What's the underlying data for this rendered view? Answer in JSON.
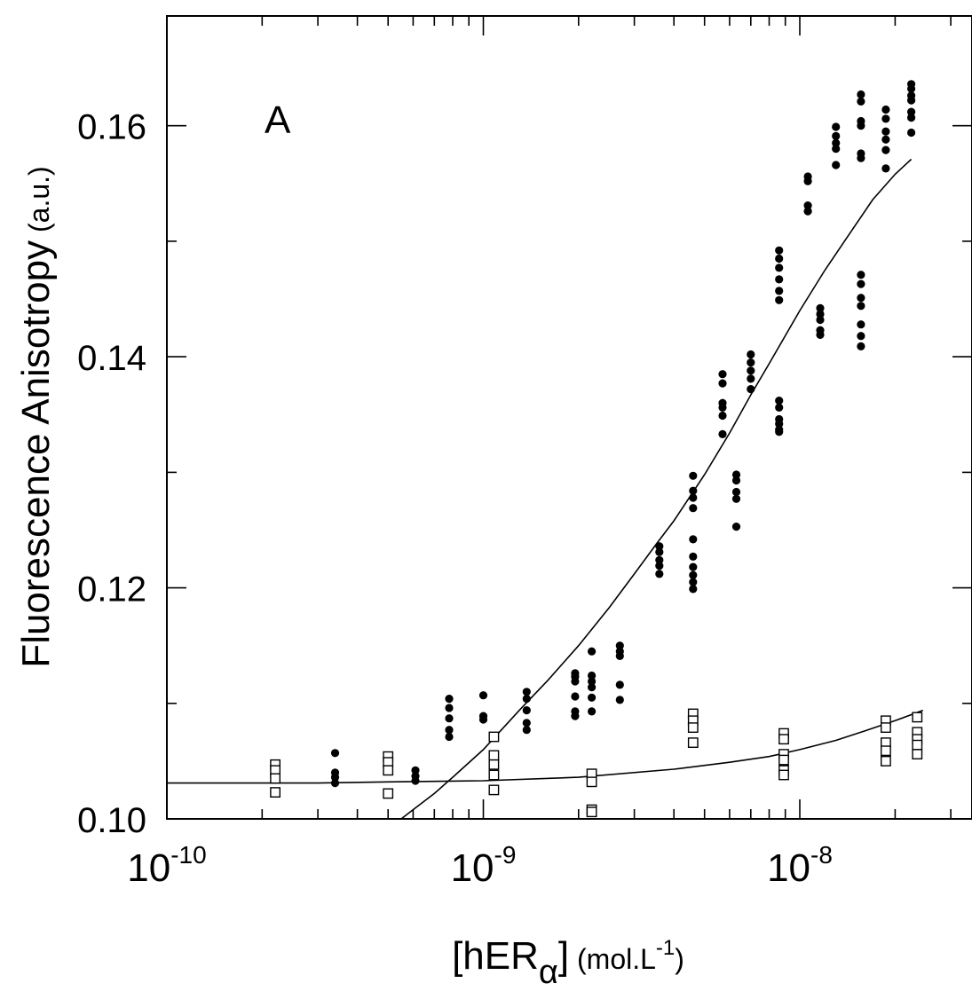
{
  "chart_data": {
    "type": "scatter",
    "panel_label": "A",
    "x_scale": "log",
    "xlim": [
      1e-10,
      3.5e-08
    ],
    "ylim": [
      0.1,
      0.1695
    ],
    "grid": false,
    "xlabel": {
      "main": "[hER",
      "subscript": "α",
      "close": "]",
      "units_prefix": " (mol.L",
      "units_exp": "-1",
      "units_suffix": ")"
    },
    "ylabel": {
      "main": "Fluorescence Anisotropy",
      "units": " (a.u.)"
    },
    "x_ticks": [
      {
        "base": "10",
        "exp": "-10",
        "value": 1e-10
      },
      {
        "base": "10",
        "exp": "-9",
        "value": 1e-09
      },
      {
        "base": "10",
        "exp": "-8",
        "value": 1e-08
      }
    ],
    "y_ticks": [
      {
        "label": "0.10",
        "value": 0.1
      },
      {
        "label": "0.12",
        "value": 0.12
      },
      {
        "label": "0.14",
        "value": 0.14
      },
      {
        "label": "0.16",
        "value": 0.16
      }
    ],
    "series": [
      {
        "marker": "filled-circle",
        "color": "#000000",
        "points": [
          [
            3.4e-10,
            0.1057
          ],
          [
            3.4e-10,
            0.104
          ],
          [
            3.4e-10,
            0.1036
          ],
          [
            3.4e-10,
            0.1031
          ],
          [
            6.1e-10,
            0.1042
          ],
          [
            6.1e-10,
            0.1037
          ],
          [
            6.1e-10,
            0.1033
          ],
          [
            7.8e-10,
            0.1104
          ],
          [
            7.8e-10,
            0.1096
          ],
          [
            7.8e-10,
            0.1087
          ],
          [
            7.8e-10,
            0.1077
          ],
          [
            7.8e-10,
            0.1071
          ],
          [
            1e-09,
            0.1107
          ],
          [
            1e-09,
            0.1089
          ],
          [
            1e-09,
            0.1086
          ],
          [
            1.37e-09,
            0.111
          ],
          [
            1.37e-09,
            0.1104
          ],
          [
            1.37e-09,
            0.1094
          ],
          [
            1.37e-09,
            0.1083
          ],
          [
            1.37e-09,
            0.1077
          ],
          [
            1.95e-09,
            0.1126
          ],
          [
            1.95e-09,
            0.1123
          ],
          [
            1.95e-09,
            0.1119
          ],
          [
            1.95e-09,
            0.1106
          ],
          [
            1.95e-09,
            0.1093
          ],
          [
            1.95e-09,
            0.1089
          ],
          [
            2.2e-09,
            0.1145
          ],
          [
            2.2e-09,
            0.1124
          ],
          [
            2.2e-09,
            0.1119
          ],
          [
            2.2e-09,
            0.1114
          ],
          [
            2.2e-09,
            0.1105
          ],
          [
            2.2e-09,
            0.1093
          ],
          [
            2.7e-09,
            0.115
          ],
          [
            2.7e-09,
            0.1145
          ],
          [
            2.7e-09,
            0.1141
          ],
          [
            2.7e-09,
            0.1116
          ],
          [
            2.7e-09,
            0.1103
          ],
          [
            3.6e-09,
            0.1236
          ],
          [
            3.6e-09,
            0.1231
          ],
          [
            3.6e-09,
            0.1224
          ],
          [
            3.6e-09,
            0.1219
          ],
          [
            3.6e-09,
            0.1212
          ],
          [
            4.6e-09,
            0.1297
          ],
          [
            4.6e-09,
            0.1284
          ],
          [
            4.6e-09,
            0.1278
          ],
          [
            4.6e-09,
            0.1269
          ],
          [
            4.6e-09,
            0.1242
          ],
          [
            4.6e-09,
            0.1227
          ],
          [
            4.6e-09,
            0.1218
          ],
          [
            4.6e-09,
            0.1211
          ],
          [
            4.6e-09,
            0.1205
          ],
          [
            4.6e-09,
            0.1199
          ],
          [
            5.7e-09,
            0.1385
          ],
          [
            5.7e-09,
            0.1377
          ],
          [
            5.7e-09,
            0.136
          ],
          [
            5.7e-09,
            0.1356
          ],
          [
            5.7e-09,
            0.1349
          ],
          [
            5.7e-09,
            0.1333
          ],
          [
            6.3e-09,
            0.1298
          ],
          [
            6.3e-09,
            0.1293
          ],
          [
            6.3e-09,
            0.1283
          ],
          [
            6.3e-09,
            0.1277
          ],
          [
            6.3e-09,
            0.1253
          ],
          [
            7e-09,
            0.1402
          ],
          [
            7e-09,
            0.1395
          ],
          [
            7e-09,
            0.1388
          ],
          [
            7e-09,
            0.1381
          ],
          [
            7e-09,
            0.1372
          ],
          [
            8.6e-09,
            0.1492
          ],
          [
            8.6e-09,
            0.1485
          ],
          [
            8.6e-09,
            0.1477
          ],
          [
            8.6e-09,
            0.1467
          ],
          [
            8.6e-09,
            0.1457
          ],
          [
            8.6e-09,
            0.1449
          ],
          [
            8.6e-09,
            0.1362
          ],
          [
            8.6e-09,
            0.1356
          ],
          [
            8.6e-09,
            0.1346
          ],
          [
            8.6e-09,
            0.1342
          ],
          [
            8.6e-09,
            0.1337
          ],
          [
            8.6e-09,
            0.1335
          ],
          [
            1.06e-08,
            0.1556
          ],
          [
            1.06e-08,
            0.1552
          ],
          [
            1.06e-08,
            0.1531
          ],
          [
            1.06e-08,
            0.1526
          ],
          [
            1.16e-08,
            0.1442
          ],
          [
            1.16e-08,
            0.1437
          ],
          [
            1.16e-08,
            0.1432
          ],
          [
            1.16e-08,
            0.1423
          ],
          [
            1.16e-08,
            0.1419
          ],
          [
            1.3e-08,
            0.1599
          ],
          [
            1.3e-08,
            0.1591
          ],
          [
            1.3e-08,
            0.1585
          ],
          [
            1.3e-08,
            0.158
          ],
          [
            1.3e-08,
            0.1566
          ],
          [
            1.56e-08,
            0.1627
          ],
          [
            1.56e-08,
            0.1621
          ],
          [
            1.56e-08,
            0.1604
          ],
          [
            1.56e-08,
            0.16
          ],
          [
            1.56e-08,
            0.1576
          ],
          [
            1.56e-08,
            0.1572
          ],
          [
            1.56e-08,
            0.1471
          ],
          [
            1.56e-08,
            0.1463
          ],
          [
            1.56e-08,
            0.1451
          ],
          [
            1.56e-08,
            0.1444
          ],
          [
            1.56e-08,
            0.1428
          ],
          [
            1.56e-08,
            0.1418
          ],
          [
            1.56e-08,
            0.1409
          ],
          [
            1.87e-08,
            0.1614
          ],
          [
            1.87e-08,
            0.1606
          ],
          [
            1.87e-08,
            0.1595
          ],
          [
            1.87e-08,
            0.1588
          ],
          [
            1.87e-08,
            0.1579
          ],
          [
            1.87e-08,
            0.1563
          ],
          [
            2.25e-08,
            0.1636
          ],
          [
            2.25e-08,
            0.1632
          ],
          [
            2.25e-08,
            0.1626
          ],
          [
            2.25e-08,
            0.1622
          ],
          [
            2.25e-08,
            0.1612
          ],
          [
            2.25e-08,
            0.1607
          ],
          [
            2.25e-08,
            0.1594
          ]
        ]
      },
      {
        "marker": "open-square",
        "color": "#000000",
        "points": [
          [
            2.2e-10,
            0.1047
          ],
          [
            2.2e-10,
            0.1042
          ],
          [
            2.2e-10,
            0.1035
          ],
          [
            2.2e-10,
            0.1023
          ],
          [
            5e-10,
            0.1054
          ],
          [
            5e-10,
            0.1049
          ],
          [
            5e-10,
            0.1042
          ],
          [
            5e-10,
            0.1022
          ],
          [
            1.08e-09,
            0.1071
          ],
          [
            1.08e-09,
            0.1055
          ],
          [
            1.08e-09,
            0.1047
          ],
          [
            1.08e-09,
            0.1038
          ],
          [
            1.08e-09,
            0.1025
          ],
          [
            2.2e-09,
            0.1039
          ],
          [
            2.2e-09,
            0.1032
          ],
          [
            2.2e-09,
            0.1008
          ],
          [
            2.2e-09,
            0.1006
          ],
          [
            4.6e-09,
            0.1091
          ],
          [
            4.6e-09,
            0.1085
          ],
          [
            4.6e-09,
            0.1079
          ],
          [
            4.6e-09,
            0.1066
          ],
          [
            8.9e-09,
            0.1074
          ],
          [
            8.9e-09,
            0.1069
          ],
          [
            8.9e-09,
            0.1056
          ],
          [
            8.9e-09,
            0.1051
          ],
          [
            8.9e-09,
            0.1042
          ],
          [
            8.9e-09,
            0.1038
          ],
          [
            1.87e-08,
            0.1085
          ],
          [
            1.87e-08,
            0.1079
          ],
          [
            1.87e-08,
            0.1066
          ],
          [
            1.87e-08,
            0.1059
          ],
          [
            1.87e-08,
            0.105
          ],
          [
            2.35e-08,
            0.1088
          ],
          [
            2.35e-08,
            0.1075
          ],
          [
            2.35e-08,
            0.1069
          ],
          [
            2.35e-08,
            0.1064
          ],
          [
            2.35e-08,
            0.1056
          ]
        ]
      }
    ],
    "fits": [
      {
        "stroke": "#000000",
        "points": [
          [
            5.5e-10,
            0.1
          ],
          [
            6e-10,
            0.1008
          ],
          [
            7e-10,
            0.1022
          ],
          [
            8e-10,
            0.1036
          ],
          [
            1e-09,
            0.106
          ],
          [
            1.3e-09,
            0.1094
          ],
          [
            1.6e-09,
            0.112
          ],
          [
            2e-09,
            0.115
          ],
          [
            2.5e-09,
            0.1183
          ],
          [
            3e-09,
            0.1212
          ],
          [
            3.5e-09,
            0.1237
          ],
          [
            4e-09,
            0.1258
          ],
          [
            5e-09,
            0.1298
          ],
          [
            6e-09,
            0.1334
          ],
          [
            7e-09,
            0.1367
          ],
          [
            8e-09,
            0.1394
          ],
          [
            1e-08,
            0.144
          ],
          [
            1.2e-08,
            0.1475
          ],
          [
            1.4e-08,
            0.1502
          ],
          [
            1.7e-08,
            0.1536
          ],
          [
            2e-08,
            0.1558
          ],
          [
            2.25e-08,
            0.1571
          ]
        ]
      },
      {
        "stroke": "#000000",
        "points": [
          [
            1e-10,
            0.1031
          ],
          [
            3e-10,
            0.1031
          ],
          [
            5e-10,
            0.1032
          ],
          [
            1e-09,
            0.1033
          ],
          [
            2e-09,
            0.1036
          ],
          [
            4e-09,
            0.1043
          ],
          [
            6e-09,
            0.1049
          ],
          [
            8e-09,
            0.1054
          ],
          [
            1e-08,
            0.106
          ],
          [
            1.3e-08,
            0.1068
          ],
          [
            1.6e-08,
            0.1076
          ],
          [
            2e-08,
            0.1085
          ],
          [
            2.45e-08,
            0.1094
          ]
        ]
      }
    ]
  }
}
